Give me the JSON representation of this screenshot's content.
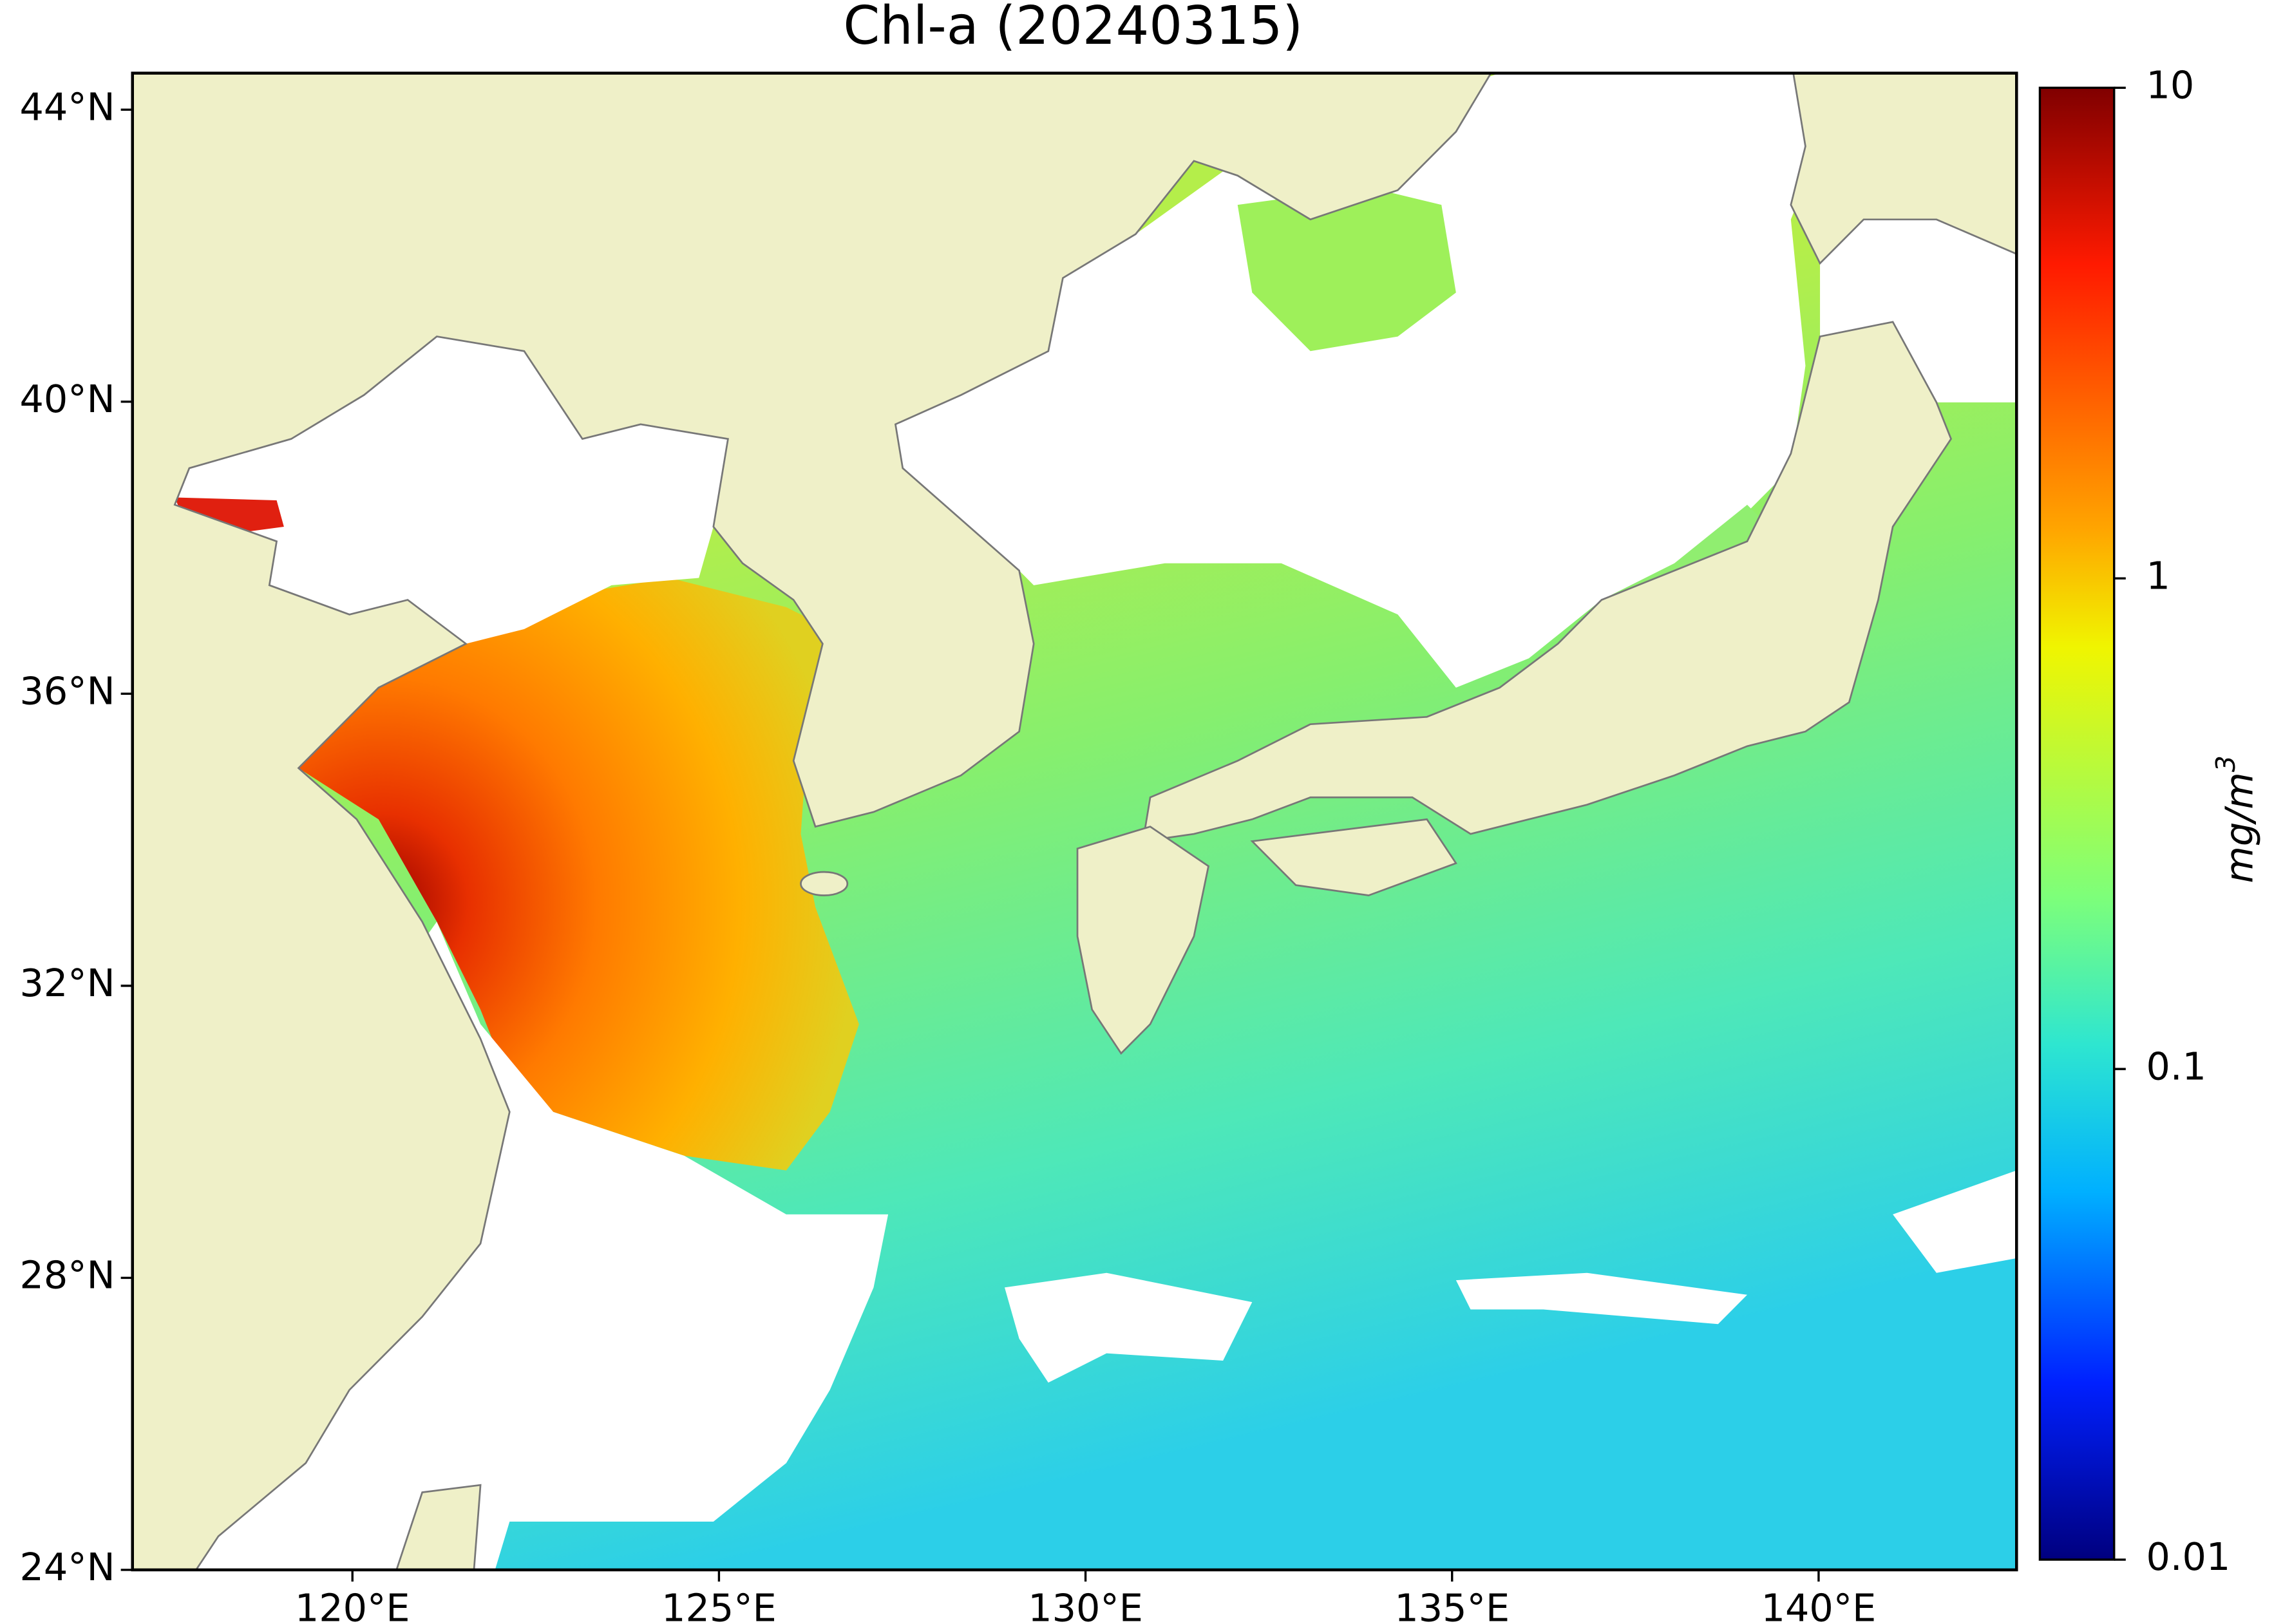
{
  "title": "Chl-a (20240315)",
  "map": {
    "lon_range": [
      117,
      142.7
    ],
    "lat_range": [
      24,
      44.5
    ],
    "lon_ticks": [
      {
        "value": 120,
        "label": "120°E"
      },
      {
        "value": 125,
        "label": "125°E"
      },
      {
        "value": 130,
        "label": "130°E"
      },
      {
        "value": 135,
        "label": "135°E"
      },
      {
        "value": 140,
        "label": "140°E"
      }
    ],
    "lat_ticks": [
      {
        "value": 44,
        "label": "44°N"
      },
      {
        "value": 40,
        "label": "40°N"
      },
      {
        "value": 36,
        "label": "36°N"
      },
      {
        "value": 32,
        "label": "32°N"
      },
      {
        "value": 28,
        "label": "28°N"
      },
      {
        "value": 24,
        "label": "24°N"
      }
    ]
  },
  "colorbar": {
    "range": [
      0.01,
      10
    ],
    "log": true,
    "ticks": [
      10,
      1,
      0.1,
      0.01
    ],
    "label_text": "mg/m",
    "label_exponent": "3"
  }
}
